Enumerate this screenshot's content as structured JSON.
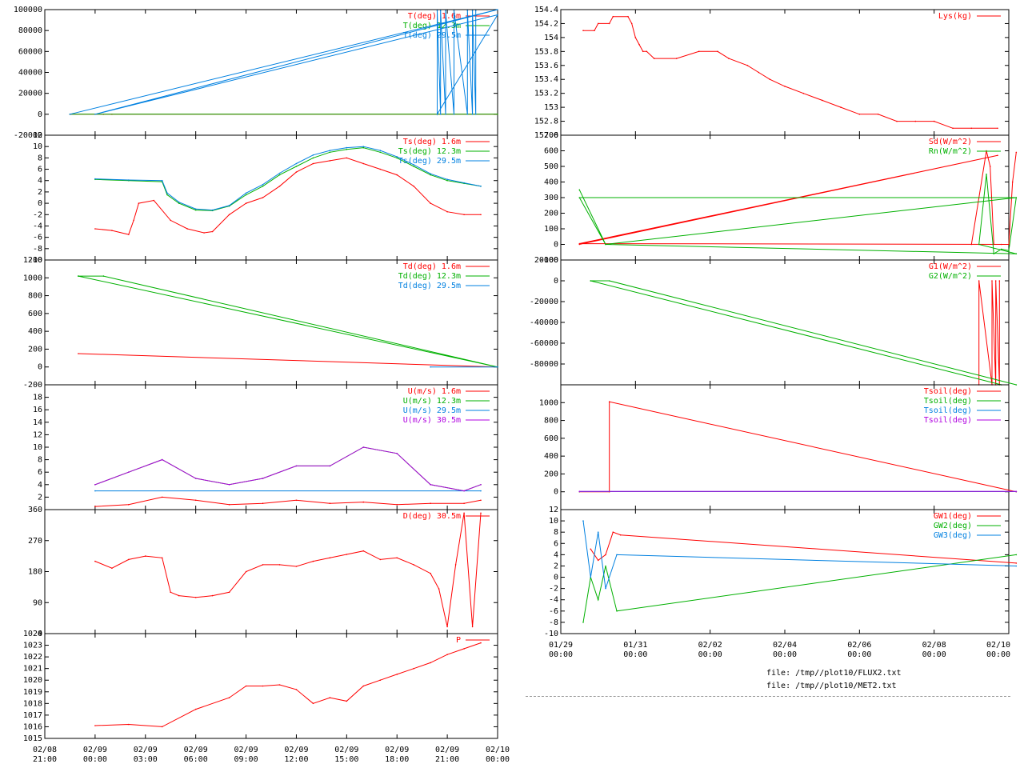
{
  "colors": {
    "c1": "#ff0000",
    "c2": "#00b000",
    "c3": "#0080e0",
    "c4": "#b000e0"
  },
  "left_x_ticks": [
    {
      "t": -3,
      "l1": "02/08",
      "l2": "21:00"
    },
    {
      "t": 0,
      "l1": "02/09",
      "l2": "00:00"
    },
    {
      "t": 3,
      "l1": "02/09",
      "l2": "03:00"
    },
    {
      "t": 6,
      "l1": "02/09",
      "l2": "06:00"
    },
    {
      "t": 9,
      "l1": "02/09",
      "l2": "09:00"
    },
    {
      "t": 12,
      "l1": "02/09",
      "l2": "12:00"
    },
    {
      "t": 15,
      "l1": "02/09",
      "l2": "15:00"
    },
    {
      "t": 18,
      "l1": "02/09",
      "l2": "18:00"
    },
    {
      "t": 21,
      "l1": "02/09",
      "l2": "21:00"
    },
    {
      "t": 24,
      "l1": "02/10",
      "l2": "00:00"
    }
  ],
  "right_x_ticks": [
    {
      "t": 0,
      "l1": "01/29",
      "l2": "00:00"
    },
    {
      "t": 2,
      "l1": "01/31",
      "l2": "00:00"
    },
    {
      "t": 4,
      "l1": "02/02",
      "l2": "00:00"
    },
    {
      "t": 6,
      "l1": "02/04",
      "l2": "00:00"
    },
    {
      "t": 8,
      "l1": "02/06",
      "l2": "00:00"
    },
    {
      "t": 10,
      "l1": "02/08",
      "l2": "00:00"
    },
    {
      "t": 12,
      "l1": "02/10",
      "l2": "00:00"
    }
  ],
  "chart_data": [
    {
      "type": "line",
      "column": "left",
      "ylim": [
        -20000,
        100000
      ],
      "ytick_labels": [
        "-20000",
        "0",
        "20000",
        "40000",
        "60000",
        "80000",
        "100000"
      ],
      "ytick_values": [
        -20000,
        0,
        20000,
        40000,
        60000,
        80000,
        100000
      ],
      "series": [
        {
          "name": "T(deg)  1.6m",
          "color": "c1",
          "x": [
            -1.5,
            0.5,
            1.0,
            24
          ],
          "y": [
            0,
            0,
            0,
            0
          ]
        },
        {
          "name": "T(deg) 12.3m",
          "color": "c2",
          "x": [
            -1.5,
            24
          ],
          "y": [
            0,
            0
          ]
        },
        {
          "name": "T(deg) 29.5m",
          "color": "c3",
          "x": [
            -1.5,
            24,
            0,
            24,
            20.4,
            20.4,
            20.6,
            20.6,
            20.9,
            20.9,
            21.4,
            21.4,
            22.2,
            22.2,
            22.5,
            22.5,
            22.7,
            22.7
          ],
          "y": [
            0,
            100000,
            0,
            95000,
            0,
            99000,
            0,
            99000,
            0,
            99000,
            0,
            99000,
            0,
            99000,
            0,
            99000,
            0,
            99000
          ]
        }
      ]
    },
    {
      "type": "line",
      "column": "left",
      "ylim": [
        -10,
        12
      ],
      "ytick_labels": [
        "-10",
        "-8",
        "-6",
        "-4",
        "-2",
        "0",
        "2",
        "4",
        "6",
        "8",
        "10",
        "12"
      ],
      "ytick_values": [
        -10,
        -8,
        -6,
        -4,
        -2,
        0,
        2,
        4,
        6,
        8,
        10,
        12
      ],
      "series": [
        {
          "name": "Ts(deg)  1.6m",
          "color": "c1",
          "x": [
            0,
            1,
            2,
            2.3,
            2.6,
            3.5,
            4.5,
            5.5,
            6.5,
            7,
            8,
            9,
            10,
            11,
            12,
            13,
            14,
            15,
            16,
            17,
            18,
            19,
            20,
            21,
            22,
            23
          ],
          "y": [
            -4.5,
            -4.8,
            -5.5,
            -3,
            0,
            0.5,
            -3,
            -4.5,
            -5.2,
            -5,
            -2,
            0,
            1,
            3,
            5.5,
            7,
            7.5,
            8,
            7,
            6,
            5,
            3,
            0,
            -1.5,
            -2,
            -2
          ]
        },
        {
          "name": "Ts(deg) 12.3m",
          "color": "c2",
          "x": [
            0,
            2,
            4,
            4.3,
            5,
            6,
            7,
            8,
            9,
            10,
            11,
            12,
            13,
            14,
            15,
            16,
            17,
            18,
            19,
            20,
            21,
            22,
            23
          ],
          "y": [
            4.2,
            4,
            3.8,
            1.5,
            0,
            -1.2,
            -1.3,
            -0.5,
            1.5,
            3,
            5,
            6.5,
            8,
            9,
            9.5,
            9.8,
            9,
            8,
            6.5,
            5,
            4,
            3.5,
            3
          ]
        },
        {
          "name": "Ts(deg) 29.5m",
          "color": "c3",
          "x": [
            0,
            2,
            4,
            4.3,
            5,
            6,
            7,
            8,
            9,
            10,
            11,
            12,
            13,
            14,
            15,
            16,
            17,
            18,
            19,
            20,
            21,
            22,
            23
          ],
          "y": [
            4.3,
            4.1,
            4,
            1.8,
            0.2,
            -1,
            -1.2,
            -0.4,
            1.8,
            3.3,
            5.3,
            7,
            8.5,
            9.3,
            9.8,
            10,
            9.3,
            8.2,
            6.8,
            5.2,
            4.2,
            3.6,
            3
          ]
        }
      ]
    },
    {
      "type": "line",
      "column": "left",
      "ylim": [
        -200,
        1200
      ],
      "ytick_labels": [
        "-200",
        "0",
        "200",
        "400",
        "600",
        "800",
        "1000",
        "1200"
      ],
      "ytick_values": [
        -200,
        0,
        200,
        400,
        600,
        800,
        1000,
        1200
      ],
      "series": [
        {
          "name": "Td(deg)  1.6m",
          "color": "c1",
          "x": [
            -1,
            24
          ],
          "y": [
            150,
            0
          ]
        },
        {
          "name": "Td(deg) 12.3m",
          "color": "c2",
          "x": [
            -1,
            24,
            -1,
            0.5,
            24
          ],
          "y": [
            1020,
            0,
            1020,
            1020,
            0
          ]
        },
        {
          "name": "Td(deg) 29.5m",
          "color": "c3",
          "x": [
            20,
            24
          ],
          "y": [
            0,
            0
          ]
        }
      ]
    },
    {
      "type": "line",
      "column": "left",
      "ylim": [
        0,
        20
      ],
      "ytick_labels": [
        "2",
        "4",
        "6",
        "8",
        "10",
        "12",
        "14",
        "16",
        "18"
      ],
      "ytick_values": [
        2,
        4,
        6,
        8,
        10,
        12,
        14,
        16,
        18
      ],
      "series": [
        {
          "name": "U(m/s)  1.6m",
          "color": "c1",
          "x": [
            0,
            2,
            4,
            6,
            8,
            10,
            12,
            14,
            16,
            18,
            20,
            22,
            23
          ],
          "y": [
            0.5,
            0.8,
            2,
            1.5,
            0.8,
            1,
            1.5,
            1,
            1.2,
            0.8,
            1,
            1,
            1.5
          ]
        },
        {
          "name": "U(m/s) 12.3m",
          "color": "c2",
          "x": [
            0,
            2,
            4,
            6,
            8,
            10,
            12,
            14,
            16,
            18,
            20,
            22,
            23
          ],
          "y": [
            4,
            6,
            8,
            5,
            4,
            5,
            7,
            7,
            10,
            9,
            4,
            3,
            4
          ]
        },
        {
          "name": "U(m/s) 29.5m",
          "color": "c3",
          "x": [
            0,
            23
          ],
          "y": [
            3,
            3
          ]
        },
        {
          "name": "U(m/s) 30.5m",
          "color": "c4",
          "x": [
            0,
            2,
            4,
            6,
            8,
            10,
            12,
            14,
            16,
            18,
            20,
            22,
            23
          ],
          "y": [
            4,
            6,
            8,
            5,
            4,
            5,
            7,
            7,
            10,
            9,
            4,
            3,
            4
          ]
        }
      ]
    },
    {
      "type": "line",
      "column": "left",
      "ylim": [
        0,
        360
      ],
      "ytick_labels": [
        "0",
        "90",
        "180",
        "270",
        "360"
      ],
      "ytick_values": [
        0,
        90,
        180,
        270,
        360
      ],
      "series": [
        {
          "name": "D(deg)  30.5m",
          "color": "c1",
          "x": [
            0,
            1,
            2,
            3,
            4,
            4.5,
            5,
            6,
            7,
            8,
            9,
            10,
            11,
            12,
            13,
            14,
            15,
            16,
            17,
            18,
            19,
            20,
            20.5,
            21,
            21.5,
            22,
            22.5,
            23
          ],
          "y": [
            210,
            190,
            215,
            225,
            220,
            120,
            110,
            105,
            110,
            120,
            180,
            200,
            200,
            195,
            210,
            220,
            230,
            240,
            215,
            220,
            200,
            175,
            130,
            20,
            200,
            350,
            20,
            350
          ]
        }
      ]
    },
    {
      "type": "line",
      "column": "left",
      "ylim": [
        1015,
        1024
      ],
      "ytick_labels": [
        "1015",
        "1016",
        "1017",
        "1018",
        "1019",
        "1020",
        "1021",
        "1022",
        "1023",
        "1024"
      ],
      "ytick_values": [
        1015,
        1016,
        1017,
        1018,
        1019,
        1020,
        1021,
        1022,
        1023,
        1024
      ],
      "series": [
        {
          "name": "P",
          "color": "c1",
          "x": [
            0,
            2,
            4,
            6,
            8,
            9,
            10,
            11,
            12,
            13,
            14,
            15,
            16,
            17,
            18,
            19,
            20,
            21,
            22,
            23
          ],
          "y": [
            1016.1,
            1016.2,
            1016,
            1017.5,
            1018.5,
            1019.5,
            1019.5,
            1019.6,
            1019.2,
            1018,
            1018.5,
            1018.2,
            1019.5,
            1020,
            1020.5,
            1021,
            1021.5,
            1022.2,
            1022.7,
            1023.2
          ]
        }
      ]
    },
    {
      "type": "line",
      "column": "right",
      "ylim": [
        152.6,
        154.4
      ],
      "ytick_labels": [
        "152.6",
        "152.8",
        "153",
        "153.2",
        "153.4",
        "153.6",
        "153.8",
        "154",
        "154.2",
        "154.4"
      ],
      "ytick_values": [
        152.6,
        152.8,
        153,
        153.2,
        153.4,
        153.6,
        153.8,
        154,
        154.2,
        154.4
      ],
      "series": [
        {
          "name": "Lys(kg)",
          "color": "c1",
          "x": [
            0.6,
            0.9,
            1.0,
            1.3,
            1.4,
            1.8,
            1.9,
            2.0,
            2.1,
            2.2,
            2.3,
            2.5,
            3.1,
            3.7,
            4.2,
            4.5,
            5.0,
            5.3,
            5.6,
            6.0,
            6.5,
            7.0,
            7.5,
            8.0,
            8.5,
            9.0,
            9.5,
            10.0,
            10.5,
            11.0,
            11.7
          ],
          "y": [
            154.1,
            154.1,
            154.2,
            154.2,
            154.3,
            154.3,
            154.2,
            154.0,
            153.9,
            153.8,
            153.8,
            153.7,
            153.7,
            153.8,
            153.8,
            153.7,
            153.6,
            153.5,
            153.4,
            153.3,
            153.2,
            153.1,
            153.0,
            152.9,
            152.9,
            152.8,
            152.8,
            152.8,
            152.7,
            152.7,
            152.7
          ]
        }
      ]
    },
    {
      "type": "line",
      "column": "right",
      "ylim": [
        -100,
        700
      ],
      "ytick_labels": [
        "-100",
        "0",
        "100",
        "200",
        "300",
        "400",
        "500",
        "600",
        "700"
      ],
      "ytick_values": [
        -100,
        0,
        100,
        200,
        300,
        400,
        500,
        600,
        700
      ],
      "series": [
        {
          "name": "Sd(W/m^2)",
          "color": "c1",
          "x": [
            0.5,
            11.7,
            0.5,
            12,
            11.0,
            11.2,
            11.4,
            11.5,
            11.6,
            11.8,
            12,
            12.1,
            12.2
          ],
          "y": [
            0,
            570,
            5,
            0,
            0,
            300,
            600,
            500,
            0,
            0,
            0,
            400,
            590
          ]
        },
        {
          "name": "Rn(W/m^2)",
          "color": "c2",
          "x": [
            0.5,
            1.2,
            0.5,
            12.2,
            1.2,
            12.2,
            11.2,
            11.4,
            11.6,
            11.8,
            12,
            12.2
          ],
          "y": [
            350,
            0,
            300,
            300,
            0,
            -60,
            0,
            450,
            -60,
            -30,
            -40,
            300
          ]
        }
      ]
    },
    {
      "type": "line",
      "column": "right",
      "ylim": [
        -100000,
        20000
      ],
      "ytick_labels": [
        "-80000",
        "-60000",
        "-40000",
        "-20000",
        "0",
        "20000"
      ],
      "ytick_values": [
        -80000,
        -60000,
        -40000,
        -20000,
        0,
        20000
      ],
      "series": [
        {
          "name": "G1(W/m^2)",
          "color": "c1",
          "x": [
            11.2,
            11.2,
            11.55,
            11.55,
            11.65,
            11.65,
            11.75,
            11.75
          ],
          "y": [
            -100000,
            0,
            -100000,
            0,
            -100000,
            0,
            -100000,
            0
          ]
        },
        {
          "name": "G2(W/m^2)",
          "color": "c2",
          "x": [
            0.8,
            11.8,
            0.8,
            1.3,
            12.2
          ],
          "y": [
            0,
            -100000,
            0,
            0,
            -100000
          ]
        }
      ]
    },
    {
      "type": "line",
      "column": "right",
      "ylim": [
        -200,
        1200
      ],
      "ytick_labels": [
        "0",
        "200",
        "400",
        "600",
        "800",
        "1000"
      ],
      "ytick_values": [
        0,
        200,
        400,
        600,
        800,
        1000
      ],
      "series": [
        {
          "name": "Tsoil(deg)",
          "color": "c1",
          "x": [
            0.5,
            1.3,
            1.3,
            12.2
          ],
          "y": [
            0,
            0,
            1010,
            0
          ]
        },
        {
          "name": "Tsoil(deg)",
          "color": "c2",
          "x": [
            0.5,
            12.2
          ],
          "y": [
            2,
            2
          ]
        },
        {
          "name": "Tsoil(deg)",
          "color": "c3",
          "x": [
            0.5,
            12.2
          ],
          "y": [
            3,
            3
          ]
        },
        {
          "name": "Tsoil(deg)",
          "color": "c4",
          "x": [
            0.5,
            12.2
          ],
          "y": [
            4,
            4
          ]
        }
      ]
    },
    {
      "type": "line",
      "column": "right",
      "ylim": [
        -10,
        12
      ],
      "ytick_labels": [
        "-10",
        "-8",
        "-6",
        "-4",
        "-2",
        "0",
        "2",
        "4",
        "6",
        "8",
        "10",
        "12"
      ],
      "ytick_values": [
        -10,
        -8,
        -6,
        -4,
        -2,
        0,
        2,
        4,
        6,
        8,
        10,
        12
      ],
      "series": [
        {
          "name": "GW1(deg)",
          "color": "c1",
          "x": [
            0.8,
            1.0,
            1.2,
            1.4,
            1.6,
            12.2
          ],
          "y": [
            5,
            3,
            4,
            8,
            7.5,
            2.5
          ]
        },
        {
          "name": "GW2(deg)",
          "color": "c2",
          "x": [
            0.6,
            0.8,
            1.0,
            1.2,
            1.5,
            12.2
          ],
          "y": [
            -8,
            0,
            -4,
            2,
            -6,
            4
          ]
        },
        {
          "name": "GW3(deg)",
          "color": "c3",
          "x": [
            0.6,
            0.8,
            1.0,
            1.2,
            1.5,
            12.2
          ],
          "y": [
            10,
            0,
            8,
            -2,
            4,
            2
          ]
        }
      ]
    }
  ],
  "file_lines": [
    "file: /tmp//plot10/FLUX2.txt",
    "file: /tmp//plot10/MET2.txt"
  ]
}
